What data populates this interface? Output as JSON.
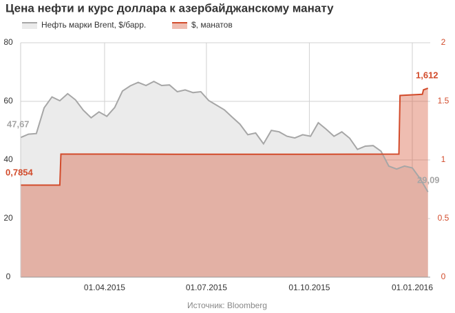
{
  "chart_data": {
    "type": "area",
    "title": "Цена нефти и курс доллара к азербайджанскому манату",
    "source": "Источник: Bloomberg",
    "legend": "top-left",
    "grid": true,
    "xlim": [
      "2015-01-16",
      "2016-01-17"
    ],
    "xticks": [
      {
        "value": "2015-04-01",
        "label": "01.04.2015"
      },
      {
        "value": "2015-07-01",
        "label": "01.07.2015"
      },
      {
        "value": "2015-10-01",
        "label": "01.10.2015"
      },
      {
        "value": "2016-01-01",
        "label": "01.01.2016"
      }
    ],
    "ylim": [
      0,
      80
    ],
    "yticks": [
      0,
      20,
      40,
      60,
      80
    ],
    "y2lim": [
      0,
      2
    ],
    "y2ticks": [
      0,
      0.5,
      1,
      1.5,
      2
    ],
    "series": [
      {
        "name": "Нефть марки Brent, $/барр.",
        "color": "#a6a6a6",
        "fill": "#ebebeb",
        "axis": "y",
        "x": [
          "2015-01-16",
          "2015-01-23",
          "2015-01-30",
          "2015-02-06",
          "2015-02-13",
          "2015-02-20",
          "2015-02-27",
          "2015-03-06",
          "2015-03-13",
          "2015-03-20",
          "2015-03-27",
          "2015-04-03",
          "2015-04-10",
          "2015-04-17",
          "2015-04-24",
          "2015-05-01",
          "2015-05-08",
          "2015-05-15",
          "2015-05-22",
          "2015-05-29",
          "2015-06-05",
          "2015-06-12",
          "2015-06-19",
          "2015-06-26",
          "2015-07-03",
          "2015-07-10",
          "2015-07-17",
          "2015-07-24",
          "2015-07-31",
          "2015-08-07",
          "2015-08-14",
          "2015-08-21",
          "2015-08-28",
          "2015-09-04",
          "2015-09-11",
          "2015-09-18",
          "2015-09-25",
          "2015-10-02",
          "2015-10-09",
          "2015-10-16",
          "2015-10-23",
          "2015-10-30",
          "2015-11-06",
          "2015-11-13",
          "2015-11-20",
          "2015-11-27",
          "2015-12-04",
          "2015-12-11",
          "2015-12-18",
          "2015-12-25",
          "2016-01-01",
          "2016-01-08",
          "2016-01-15"
        ],
        "values": [
          47.67,
          48.8,
          49.0,
          57.8,
          61.5,
          60.2,
          62.6,
          60.5,
          57.0,
          54.4,
          56.4,
          54.9,
          57.9,
          63.5,
          65.3,
          66.5,
          65.4,
          66.8,
          65.4,
          65.6,
          63.3,
          63.9,
          63.0,
          63.3,
          60.3,
          58.7,
          57.1,
          54.6,
          52.2,
          48.6,
          49.2,
          45.5,
          50.1,
          49.6,
          48.1,
          47.5,
          48.6,
          48.1,
          52.7,
          50.5,
          48.1,
          49.6,
          47.4,
          43.6,
          44.7,
          44.9,
          43.0,
          37.9,
          36.9,
          37.9,
          37.3,
          33.6,
          29.09
        ],
        "value_labels": [
          "47,67",
          null,
          null,
          null,
          null,
          null,
          null,
          null,
          null,
          null,
          null,
          null,
          null,
          null,
          null,
          null,
          null,
          null,
          null,
          null,
          null,
          null,
          null,
          null,
          null,
          null,
          null,
          null,
          null,
          null,
          null,
          null,
          null,
          null,
          null,
          null,
          null,
          null,
          null,
          null,
          null,
          null,
          null,
          null,
          null,
          null,
          null,
          null,
          null,
          null,
          null,
          null,
          "29,09"
        ]
      },
      {
        "name": "$, манатов",
        "color": "#d24b2b",
        "fill": "rgba(214,90,60,0.4)",
        "axis": "y2",
        "x": [
          "2015-01-16",
          "2015-02-20",
          "2015-02-21",
          "2015-04-15",
          "2015-07-01",
          "2015-10-01",
          "2015-12-20",
          "2015-12-21",
          "2016-01-10",
          "2016-01-11",
          "2016-01-15"
        ],
        "values": [
          0.7854,
          0.7854,
          1.05,
          1.05,
          1.048,
          1.049,
          1.05,
          1.55,
          1.56,
          1.598,
          1.612
        ],
        "value_labels": [
          "0,7854",
          null,
          null,
          null,
          null,
          null,
          null,
          null,
          null,
          null,
          "1,612"
        ]
      }
    ]
  }
}
